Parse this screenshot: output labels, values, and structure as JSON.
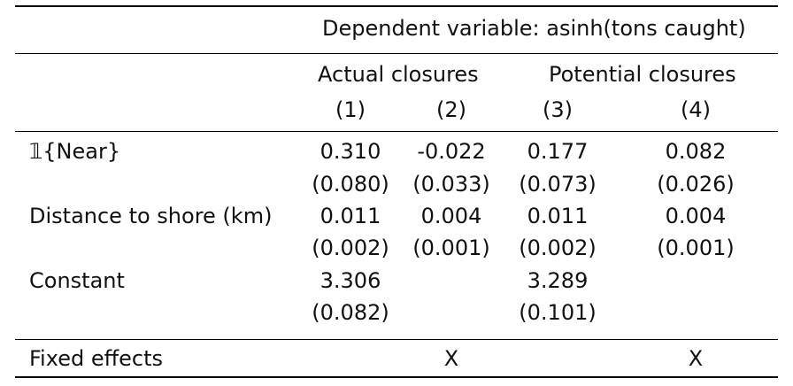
{
  "header": {
    "dependent_variable": "Dependent variable: asinh(tons caught)",
    "group_actual": "Actual closures",
    "group_potential": "Potential closures",
    "col_numbers": [
      "(1)",
      "(2)",
      "(3)",
      "(4)"
    ]
  },
  "rows": [
    {
      "label": "𝟙{Near}",
      "coef": [
        "0.310",
        "-0.022",
        "0.177",
        "0.082"
      ],
      "se": [
        "(0.080)",
        "(0.033)",
        "(0.073)",
        "(0.026)"
      ]
    },
    {
      "label": "Distance to shore (km)",
      "coef": [
        "0.011",
        "0.004",
        "0.011",
        "0.004"
      ],
      "se": [
        "(0.002)",
        "(0.001)",
        "(0.002)",
        "(0.001)"
      ]
    },
    {
      "label": "Constant",
      "coef": [
        "3.306",
        "",
        "3.289",
        ""
      ],
      "se": [
        "(0.082)",
        "",
        "(0.101)",
        ""
      ]
    }
  ],
  "fixed_effects": {
    "label": "Fixed effects",
    "marks": [
      "",
      "X",
      "",
      "X"
    ]
  }
}
